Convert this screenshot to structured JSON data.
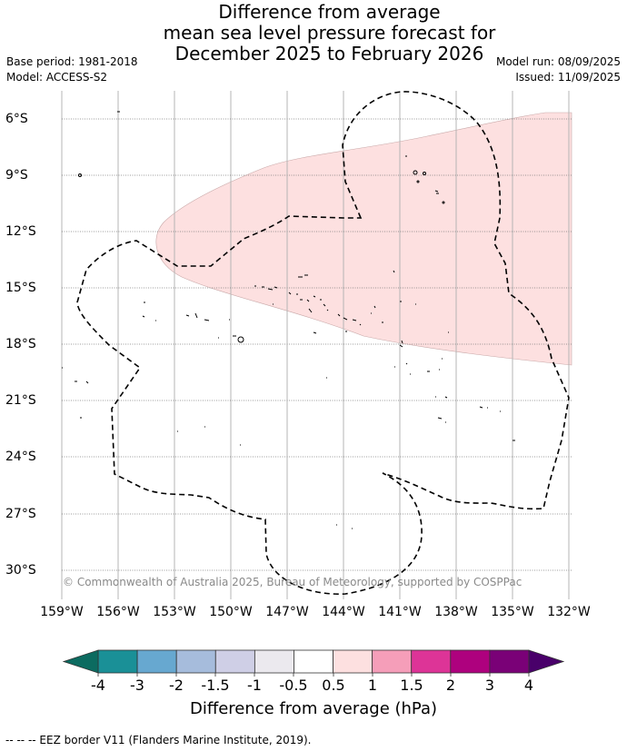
{
  "title": {
    "line1": "Difference from average",
    "line2": "mean sea level pressure forecast for",
    "line3": "December 2025 to February 2026"
  },
  "info": {
    "base_period": "Base period: 1981-2018",
    "model": "Model: ACCESS-S2",
    "model_run": "Model run: 08/09/2025",
    "issued": "Issued: 11/09/2025"
  },
  "axes": {
    "lat_labels": [
      "6°S",
      "9°S",
      "12°S",
      "15°S",
      "18°S",
      "21°S",
      "24°S",
      "27°S",
      "30°S"
    ],
    "lon_labels": [
      "159°W",
      "156°W",
      "153°W",
      "150°W",
      "147°W",
      "144°W",
      "141°W",
      "138°W",
      "135°W",
      "132°W"
    ]
  },
  "copyright": "© Commonwealth of Australia 2025, Bureau of Meteorology, supported by COSPPac",
  "colorbar": {
    "title": "Difference from average (hPa)",
    "ticks": [
      "-4",
      "-3",
      "-2",
      "-1.5",
      "-1",
      "-0.5",
      "0.5",
      "1",
      "1.5",
      "2",
      "3",
      "4"
    ],
    "colors": [
      "#1a9097",
      "#67a8d0",
      "#a6bcdc",
      "#cfcfe6",
      "#ebe9ee",
      "#ffffff",
      "#fde0e0",
      "#f59eb9",
      "#dd3497",
      "#ae017e",
      "#7a0177"
    ],
    "under_color": "#0c6b60",
    "over_color": "#49006a"
  },
  "map": {
    "anomaly_fill": "#fde0e0",
    "anomaly_category": "0.5 to 1 hPa above average"
  },
  "footnote": "-- -- -- EEZ border V11 (Flanders Marine Institute, 2019)."
}
